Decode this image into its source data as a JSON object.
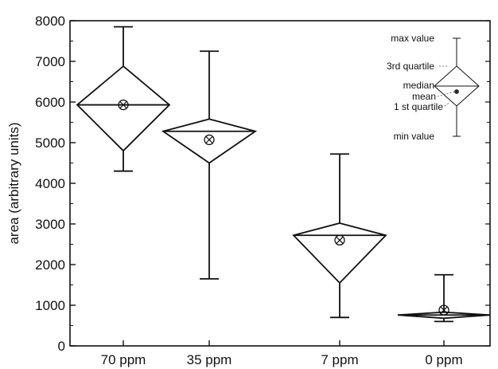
{
  "chart_data": {
    "type": "box",
    "ylabel": "area (arbitrary units)",
    "ylim": [
      0,
      8000
    ],
    "yticks": [
      0,
      1000,
      2000,
      3000,
      4000,
      5000,
      6000,
      7000,
      8000
    ],
    "categories": [
      "70 ppm",
      "35 ppm",
      "7 ppm",
      "0 ppm"
    ],
    "boxes": [
      {
        "category": "70 ppm",
        "min": 4300,
        "q1": 4800,
        "median": 5930,
        "mean": 5930,
        "q3": 6880,
        "max": 7850
      },
      {
        "category": "35 ppm",
        "min": 1650,
        "q1": 4500,
        "median": 5280,
        "mean": 5070,
        "q3": 5580,
        "max": 7250
      },
      {
        "category": "7 ppm",
        "min": 700,
        "q1": 1550,
        "median": 2720,
        "mean": 2600,
        "q3": 3020,
        "max": 4720
      },
      {
        "category": "0 ppm",
        "min": 600,
        "q1": 680,
        "median": 760,
        "mean": 880,
        "q3": 830,
        "max": 1750
      }
    ],
    "legend": {
      "position": "top-right",
      "labels": {
        "max": "max value",
        "q3": "3rd quartile",
        "median": "median",
        "mean": "mean",
        "q1": "1 st quartile",
        "min": "min value"
      }
    }
  }
}
